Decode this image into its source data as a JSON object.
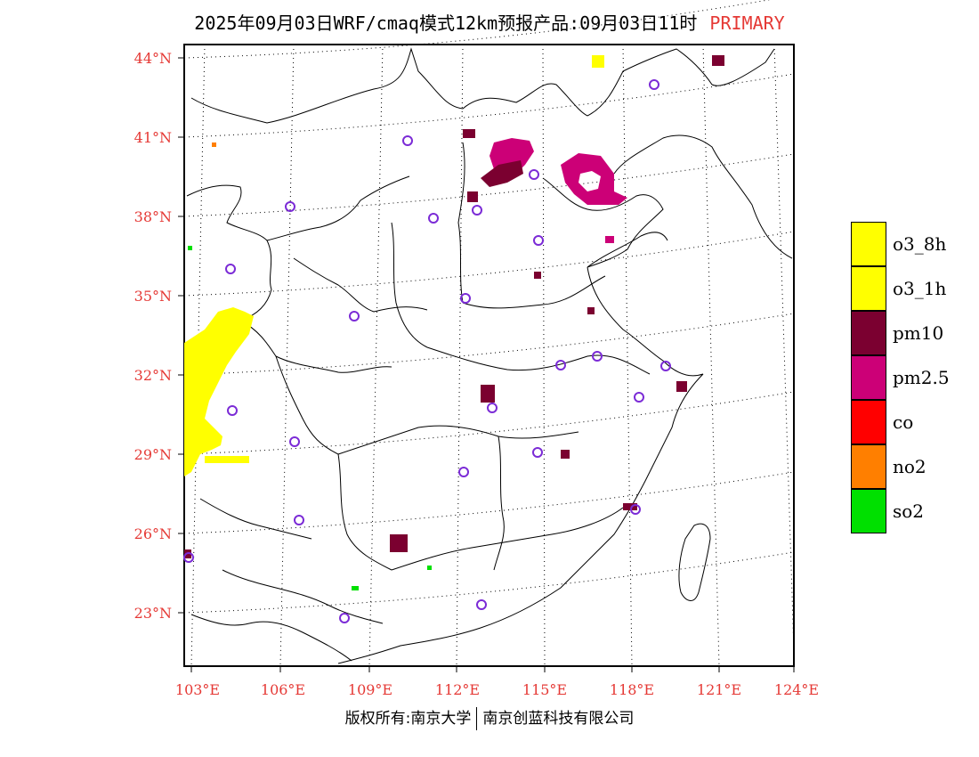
{
  "title": {
    "main": "2025年09月03日WRF/cmaq模式12km预报产品:09月03日11时",
    "tag": "PRIMARY",
    "tag_color": "#e53935"
  },
  "map": {
    "lat_labels": [
      "44°N",
      "41°N",
      "38°N",
      "35°N",
      "32°N",
      "29°N",
      "26°N",
      "23°N"
    ],
    "lon_labels": [
      "103°E",
      "106°E",
      "109°E",
      "112°E",
      "115°E",
      "118°E",
      "121°E",
      "124°E"
    ]
  },
  "legend": {
    "items": [
      {
        "label": "o3_8h",
        "color": "#ffff00"
      },
      {
        "label": "o3_1h",
        "color": "#ffff00"
      },
      {
        "label": "pm10",
        "color": "#7b0030"
      },
      {
        "label": "pm2.5",
        "color": "#cc0077"
      },
      {
        "label": "co",
        "color": "#ff0000"
      },
      {
        "label": "no2",
        "color": "#ff7f00"
      },
      {
        "label": "so2",
        "color": "#00e000"
      }
    ]
  },
  "copyright": {
    "left": "版权所有:南京大学",
    "right": "南京创蓝科技有限公司"
  },
  "colors": {
    "axis_label": "#e53935",
    "station_circle": "#7b2bd6"
  }
}
